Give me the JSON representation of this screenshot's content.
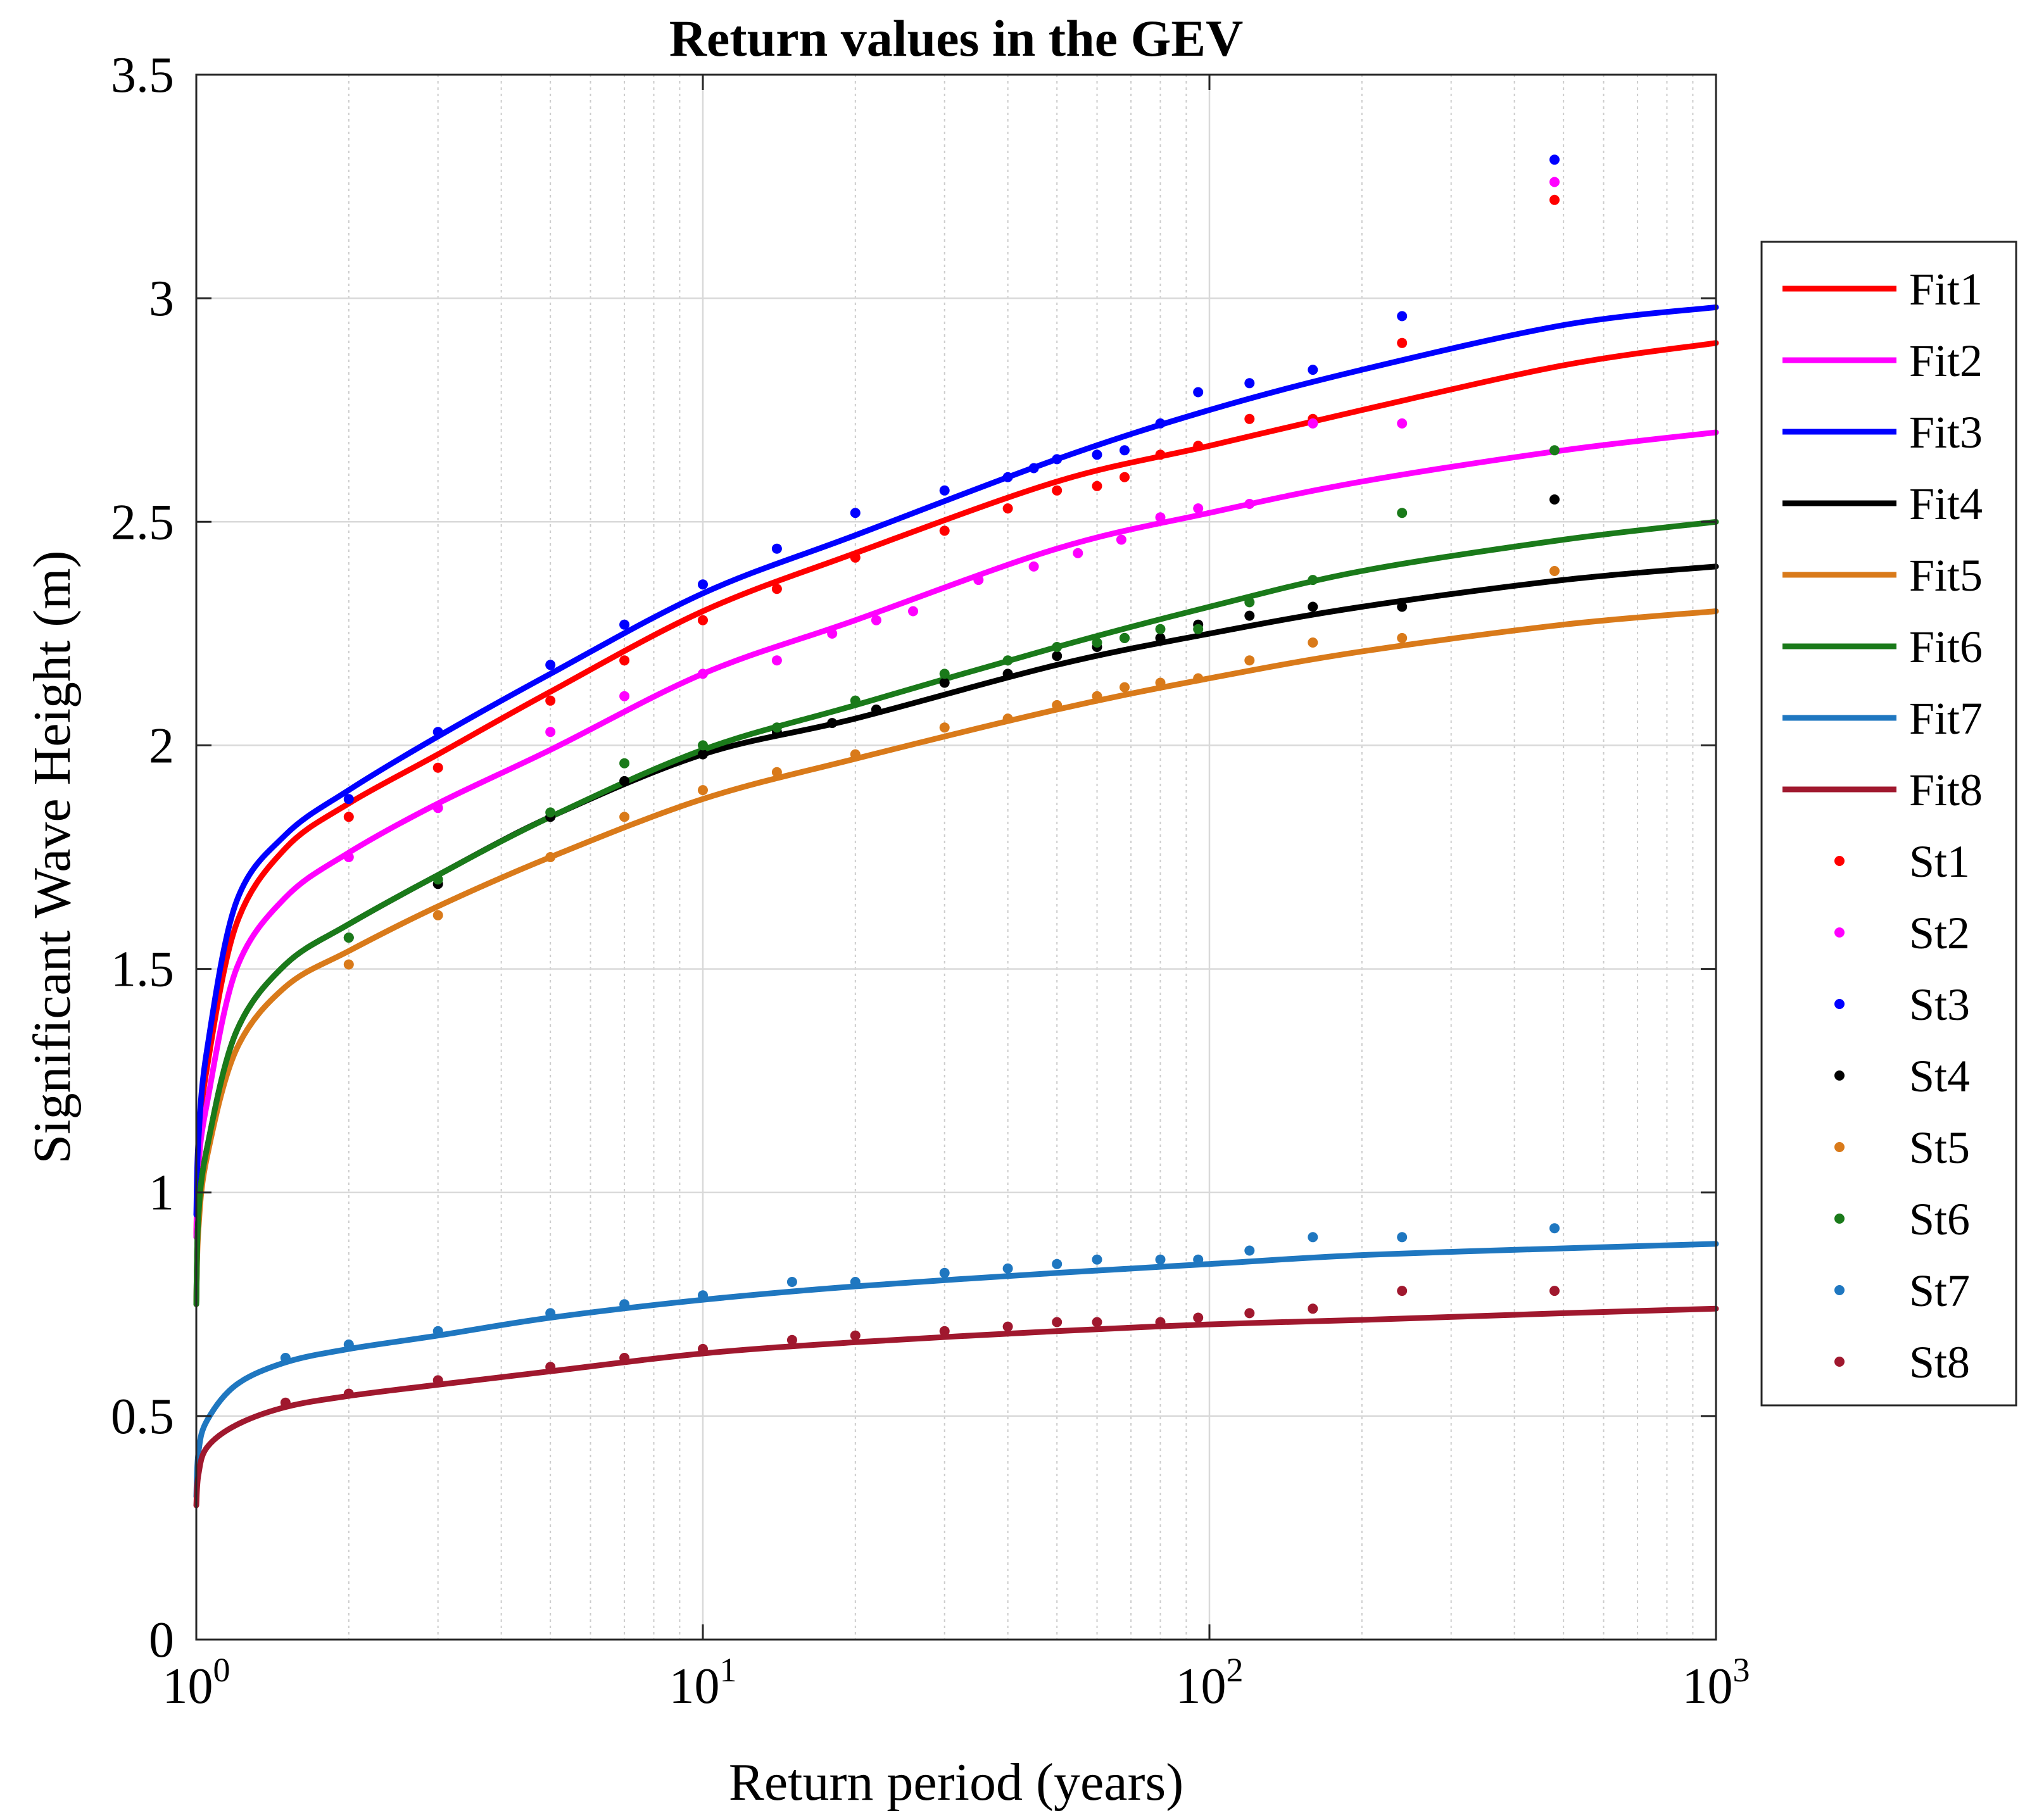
{
  "chart_data": {
    "type": "line",
    "title": "Return values in the GEV",
    "xlabel": "Return period (years)",
    "ylabel": "Significant Wave Height (m)",
    "xscale": "log",
    "xlim": [
      1,
      1000
    ],
    "ylim": [
      0,
      3.5
    ],
    "grid": true,
    "legend_position": "right-outside",
    "x_ticks": [
      {
        "base": "10",
        "exp": "0",
        "value": 1
      },
      {
        "base": "10",
        "exp": "1",
        "value": 10
      },
      {
        "base": "10",
        "exp": "2",
        "value": 100
      },
      {
        "base": "10",
        "exp": "3",
        "value": 1000
      }
    ],
    "y_ticks": [
      {
        "label": "0",
        "value": 0
      },
      {
        "label": "0.5",
        "value": 0.5
      },
      {
        "label": "1",
        "value": 1
      },
      {
        "label": "1.5",
        "value": 1.5
      },
      {
        "label": "2",
        "value": 2
      },
      {
        "label": "2.5",
        "value": 2.5
      },
      {
        "label": "3",
        "value": 3
      },
      {
        "label": "3.5",
        "value": 3.5
      }
    ],
    "fit_x": [
      1.0,
      1.01,
      1.05,
      1.2,
      1.5,
      2,
      3,
      5,
      10,
      20,
      50,
      100,
      200,
      500,
      1000
    ],
    "fits": [
      {
        "name": "Fit1",
        "color": "#ff0000",
        "values": [
          0.9,
          1.1,
          1.28,
          1.6,
          1.77,
          1.87,
          1.98,
          2.12,
          2.3,
          2.43,
          2.59,
          2.67,
          2.75,
          2.85,
          2.9
        ]
      },
      {
        "name": "Fit2",
        "color": "#ff00ff",
        "values": [
          0.9,
          1.06,
          1.2,
          1.5,
          1.66,
          1.76,
          1.87,
          1.99,
          2.16,
          2.28,
          2.44,
          2.52,
          2.59,
          2.66,
          2.7
        ]
      },
      {
        "name": "Fit3",
        "color": "#0000ff",
        "values": [
          0.95,
          1.12,
          1.32,
          1.65,
          1.8,
          1.9,
          2.02,
          2.16,
          2.34,
          2.47,
          2.64,
          2.75,
          2.84,
          2.94,
          2.98
        ]
      },
      {
        "name": "Fit4",
        "color": "#000000",
        "values": [
          0.75,
          0.95,
          1.1,
          1.36,
          1.51,
          1.6,
          1.71,
          1.84,
          1.98,
          2.06,
          2.18,
          2.25,
          2.31,
          2.37,
          2.4
        ]
      },
      {
        "name": "Fit5",
        "color": "#d97a1a",
        "values": [
          0.75,
          0.92,
          1.08,
          1.32,
          1.46,
          1.54,
          1.64,
          1.75,
          1.88,
          1.97,
          2.08,
          2.15,
          2.21,
          2.27,
          2.3
        ]
      },
      {
        "name": "Fit6",
        "color": "#1a7a1a",
        "values": [
          0.75,
          0.95,
          1.1,
          1.36,
          1.51,
          1.6,
          1.71,
          1.84,
          1.99,
          2.09,
          2.22,
          2.31,
          2.39,
          2.46,
          2.5
        ]
      },
      {
        "name": "Fit7",
        "color": "#1f77c0",
        "values": [
          0.32,
          0.42,
          0.49,
          0.57,
          0.62,
          0.65,
          0.68,
          0.72,
          0.76,
          0.79,
          0.82,
          0.84,
          0.86,
          0.875,
          0.885
        ]
      },
      {
        "name": "Fit8",
        "color": "#a0182e",
        "values": [
          0.3,
          0.37,
          0.43,
          0.48,
          0.52,
          0.545,
          0.57,
          0.6,
          0.64,
          0.665,
          0.69,
          0.705,
          0.715,
          0.73,
          0.74
        ]
      }
    ],
    "stations": [
      {
        "name": "St1",
        "color": "#ff0000",
        "x": [
          2,
          3,
          5,
          7,
          10,
          14,
          20,
          30,
          40,
          50,
          60,
          68,
          80,
          95,
          120,
          160,
          240,
          480
        ],
        "y": [
          1.84,
          1.95,
          2.1,
          2.19,
          2.28,
          2.35,
          2.42,
          2.48,
          2.53,
          2.57,
          2.58,
          2.6,
          2.65,
          2.67,
          2.73,
          2.73,
          2.9,
          3.22
        ]
      },
      {
        "name": "St2",
        "color": "#ff00ff",
        "x": [
          2,
          3,
          5,
          7,
          10,
          14,
          18,
          22,
          26,
          35,
          45,
          55,
          67,
          80,
          95,
          120,
          160,
          240,
          480
        ],
        "y": [
          1.75,
          1.86,
          2.03,
          2.11,
          2.16,
          2.19,
          2.25,
          2.28,
          2.3,
          2.37,
          2.4,
          2.43,
          2.46,
          2.51,
          2.53,
          2.54,
          2.72,
          2.72,
          3.26
        ]
      },
      {
        "name": "St3",
        "color": "#0000ff",
        "x": [
          2,
          3,
          5,
          7,
          10,
          14,
          20,
          30,
          40,
          45,
          50,
          60,
          68,
          80,
          95,
          120,
          160,
          240,
          480
        ],
        "y": [
          1.88,
          2.03,
          2.18,
          2.27,
          2.36,
          2.44,
          2.52,
          2.57,
          2.6,
          2.62,
          2.64,
          2.65,
          2.66,
          2.72,
          2.79,
          2.81,
          2.84,
          2.96,
          3.31
        ]
      },
      {
        "name": "St4",
        "color": "#000000",
        "x": [
          2,
          3,
          5,
          7,
          10,
          14,
          18,
          22,
          30,
          40,
          50,
          60,
          68,
          80,
          95,
          120,
          160,
          240,
          480
        ],
        "y": [
          1.57,
          1.69,
          1.84,
          1.92,
          1.98,
          2.03,
          2.05,
          2.08,
          2.14,
          2.16,
          2.2,
          2.22,
          2.24,
          2.24,
          2.27,
          2.29,
          2.31,
          2.31,
          2.55
        ]
      },
      {
        "name": "St5",
        "color": "#d97a1a",
        "x": [
          2,
          3,
          5,
          7,
          10,
          14,
          20,
          30,
          40,
          50,
          60,
          68,
          80,
          95,
          120,
          160,
          240,
          480
        ],
        "y": [
          1.51,
          1.62,
          1.75,
          1.84,
          1.9,
          1.94,
          1.98,
          2.04,
          2.06,
          2.09,
          2.11,
          2.13,
          2.14,
          2.15,
          2.19,
          2.23,
          2.24,
          2.39
        ]
      },
      {
        "name": "St6",
        "color": "#1a7a1a",
        "x": [
          2,
          3,
          5,
          7,
          10,
          14,
          20,
          30,
          40,
          50,
          60,
          68,
          80,
          95,
          120,
          160,
          240,
          480
        ],
        "y": [
          1.57,
          1.7,
          1.85,
          1.96,
          2.0,
          2.04,
          2.1,
          2.16,
          2.19,
          2.22,
          2.23,
          2.24,
          2.26,
          2.26,
          2.32,
          2.37,
          2.52,
          2.66
        ]
      },
      {
        "name": "St7",
        "color": "#1f77c0",
        "x": [
          1.5,
          2,
          3,
          5,
          7,
          10,
          15,
          20,
          30,
          40,
          50,
          60,
          80,
          95,
          120,
          160,
          240,
          480
        ],
        "y": [
          0.63,
          0.66,
          0.69,
          0.73,
          0.75,
          0.77,
          0.8,
          0.8,
          0.82,
          0.83,
          0.84,
          0.85,
          0.85,
          0.85,
          0.87,
          0.9,
          0.9,
          0.92
        ]
      },
      {
        "name": "St8",
        "color": "#a0182e",
        "x": [
          1.5,
          2,
          3,
          5,
          7,
          10,
          15,
          20,
          30,
          40,
          50,
          60,
          80,
          95,
          120,
          160,
          240,
          480
        ],
        "y": [
          0.53,
          0.55,
          0.58,
          0.61,
          0.63,
          0.65,
          0.67,
          0.68,
          0.69,
          0.7,
          0.71,
          0.71,
          0.71,
          0.72,
          0.73,
          0.74,
          0.78,
          0.78
        ]
      }
    ]
  }
}
